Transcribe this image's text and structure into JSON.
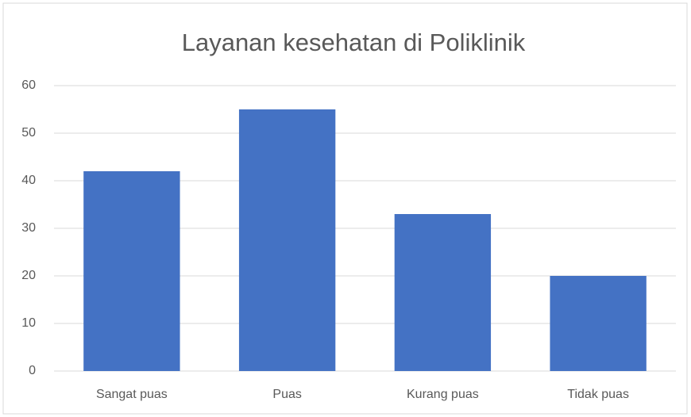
{
  "chart_data": {
    "type": "bar",
    "title": "Layanan kesehatan di Poliklinik",
    "categories": [
      "Sangat puas",
      "Puas",
      "Kurang puas",
      "Tidak puas"
    ],
    "values": [
      42,
      55,
      33,
      20
    ],
    "color": "#4472c4",
    "ylim": [
      0,
      60
    ],
    "yticks": [
      0,
      10,
      20,
      30,
      40,
      50,
      60
    ],
    "grid": true
  }
}
